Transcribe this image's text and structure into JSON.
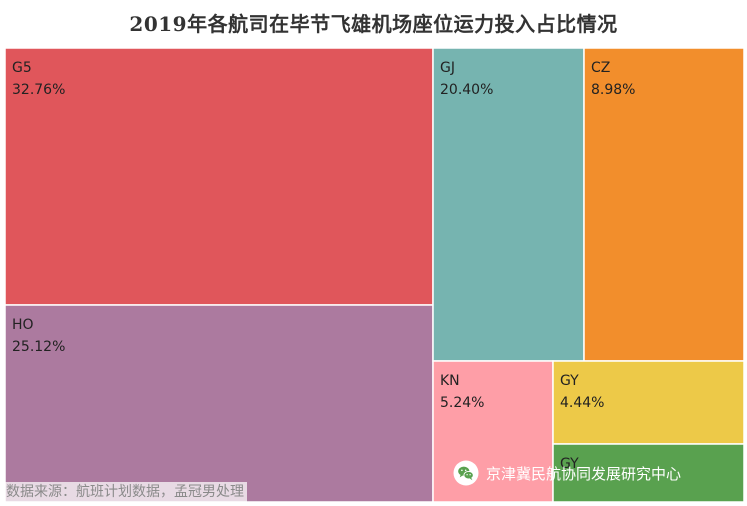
{
  "chart_data": {
    "type": "treemap",
    "title": "2019年各航司在毕节飞雄机场座位运力投入占比情况",
    "unit": "%",
    "series": [
      {
        "name": "G5",
        "value": 32.76,
        "label": "32.76%",
        "color": "#e0565b"
      },
      {
        "name": "HO",
        "value": 25.12,
        "label": "25.12%",
        "color": "#ac7a9f"
      },
      {
        "name": "GJ",
        "value": 20.4,
        "label": "20.40%",
        "color": "#76b4b0"
      },
      {
        "name": "CZ",
        "value": 8.98,
        "label": "8.98%",
        "color": "#f28e2c"
      },
      {
        "name": "KN",
        "value": 5.24,
        "label": "5.24%",
        "color": "#fe9ea7"
      },
      {
        "name": "GY",
        "value": 4.44,
        "label": "4.44%",
        "color": "#edc948"
      },
      {
        "name": "GY",
        "value": 3.06,
        "label": "",
        "color": "#59a14f"
      }
    ],
    "border_color": "#ffffff"
  },
  "footer": {
    "source_note": "数据来源：航班计划数据，孟冠男处理",
    "watermark_text": "京津冀民航协同发展研究中心",
    "watermark_icon": "wechat-icon"
  }
}
